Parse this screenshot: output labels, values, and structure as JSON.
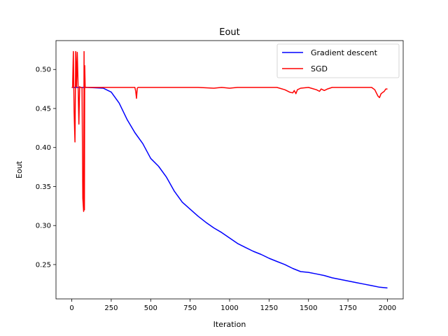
{
  "chart_data": {
    "type": "line",
    "title": "Eout",
    "xlabel": "Iteration",
    "ylabel": "Eout",
    "xlim": [
      -100,
      2100
    ],
    "ylim": [
      0.206,
      0.537
    ],
    "xticks": [
      0,
      250,
      500,
      750,
      1000,
      1250,
      1500,
      1750,
      2000
    ],
    "yticks": [
      0.25,
      0.3,
      0.35,
      0.4,
      0.45,
      0.5
    ],
    "ytick_labels": [
      "0.25",
      "0.30",
      "0.35",
      "0.40",
      "0.45",
      "0.50"
    ],
    "grid": false,
    "legend_position": "top-right",
    "series": [
      {
        "name": "Gradient descent",
        "color": "#0000ff",
        "x": [
          0,
          100,
          200,
          250,
          300,
          350,
          400,
          450,
          500,
          550,
          600,
          650,
          700,
          750,
          800,
          850,
          900,
          950,
          1000,
          1050,
          1100,
          1150,
          1200,
          1250,
          1300,
          1350,
          1400,
          1450,
          1500,
          1550,
          1600,
          1650,
          1700,
          1750,
          1800,
          1850,
          1900,
          1950,
          2000
        ],
        "y": [
          0.477,
          0.477,
          0.476,
          0.471,
          0.457,
          0.436,
          0.419,
          0.405,
          0.386,
          0.376,
          0.362,
          0.344,
          0.33,
          0.321,
          0.312,
          0.304,
          0.297,
          0.291,
          0.284,
          0.277,
          0.272,
          0.267,
          0.263,
          0.258,
          0.254,
          0.25,
          0.245,
          0.241,
          0.24,
          0.238,
          0.236,
          0.233,
          0.231,
          0.229,
          0.227,
          0.225,
          0.223,
          0.221,
          0.22
        ]
      },
      {
        "name": "SGD",
        "color": "#ff0000",
        "x": [
          0,
          5,
          10,
          15,
          20,
          25,
          30,
          35,
          40,
          45,
          50,
          55,
          60,
          65,
          70,
          75,
          78,
          80,
          82,
          85,
          88,
          92,
          100,
          150,
          200,
          300,
          400,
          405,
          410,
          415,
          420,
          430,
          450,
          500,
          600,
          700,
          800,
          900,
          950,
          1000,
          1050,
          1100,
          1200,
          1300,
          1350,
          1380,
          1400,
          1410,
          1420,
          1430,
          1450,
          1500,
          1550,
          1570,
          1580,
          1600,
          1620,
          1650,
          1700,
          1800,
          1900,
          1920,
          1940,
          1950,
          1960,
          1980,
          1990,
          2000
        ],
        "y": [
          0.477,
          0.477,
          0.523,
          0.445,
          0.407,
          0.523,
          0.478,
          0.522,
          0.478,
          0.43,
          0.478,
          0.477,
          0.477,
          0.477,
          0.335,
          0.318,
          0.523,
          0.32,
          0.505,
          0.477,
          0.477,
          0.477,
          0.477,
          0.477,
          0.477,
          0.477,
          0.477,
          0.472,
          0.463,
          0.476,
          0.477,
          0.477,
          0.477,
          0.477,
          0.477,
          0.477,
          0.477,
          0.476,
          0.477,
          0.476,
          0.477,
          0.477,
          0.477,
          0.477,
          0.474,
          0.471,
          0.47,
          0.473,
          0.469,
          0.474,
          0.476,
          0.477,
          0.474,
          0.472,
          0.475,
          0.473,
          0.475,
          0.477,
          0.477,
          0.477,
          0.477,
          0.474,
          0.466,
          0.464,
          0.469,
          0.472,
          0.475,
          0.475
        ]
      }
    ]
  }
}
